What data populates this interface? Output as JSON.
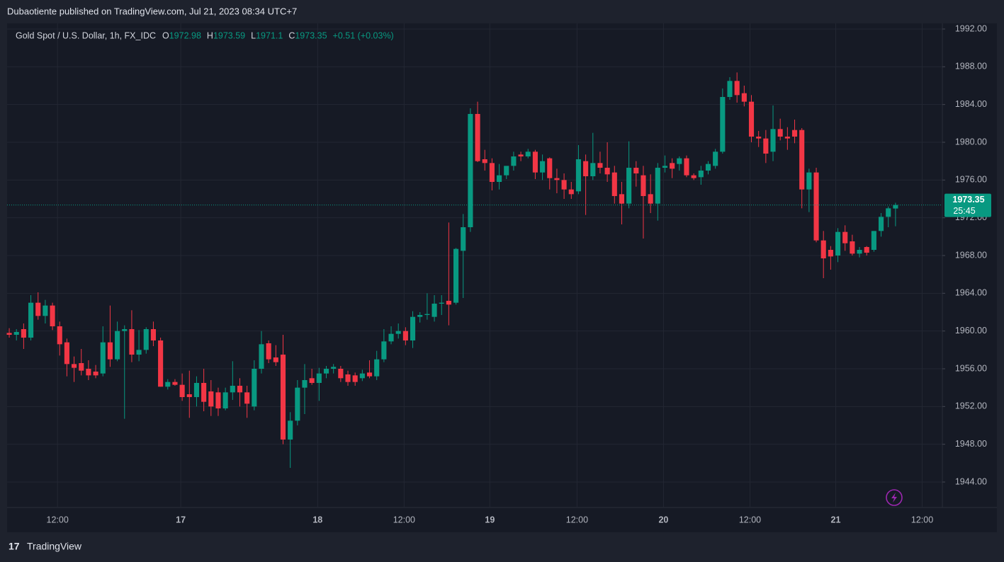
{
  "header": "Dubaotiente published on TradingView.com, Jul 21, 2023 08:34 UTC+7",
  "footer": "TradingView",
  "chart_data": {
    "type": "candlestick",
    "title": "Gold Spot / U.S. Dollar, 1h, FX_IDC",
    "legend_labels": [
      "O",
      "H",
      "L",
      "C"
    ],
    "change": "+0.51 (+0.03%)",
    "countdown": "25:45",
    "up_color": "#089981",
    "down_color": "#f23645",
    "grid": true,
    "ylim": [
      1941.3,
      1992.6
    ],
    "yticks": [
      {
        "value": 1944,
        "label": "1944.00"
      },
      {
        "value": 1948,
        "label": "1948.00"
      },
      {
        "value": 1952,
        "label": "1952.00"
      },
      {
        "value": 1956,
        "label": "1956.00"
      },
      {
        "value": 1960,
        "label": "1960.00"
      },
      {
        "value": 1964,
        "label": "1964.00"
      },
      {
        "value": 1968,
        "label": "1968.00"
      },
      {
        "value": 1972,
        "label": "1972.00"
      },
      {
        "value": 1976,
        "label": "1976.00"
      },
      {
        "value": 1980,
        "label": "1980.00"
      },
      {
        "value": 1984,
        "label": "1984.00"
      },
      {
        "value": 1988,
        "label": "1988.00"
      },
      {
        "value": 1992,
        "label": "1992.00"
      }
    ],
    "xlim": [
      -0.3,
      129.5
    ],
    "xticks": [
      {
        "value": 6.7,
        "label": "12:00"
      },
      {
        "value": 23.8,
        "label": "17"
      },
      {
        "value": 42.8,
        "label": "18"
      },
      {
        "value": 54.8,
        "label": "12:00"
      },
      {
        "value": 66.7,
        "label": "19"
      },
      {
        "value": 78.8,
        "label": "12:00"
      },
      {
        "value": 90.8,
        "label": "20"
      },
      {
        "value": 102.8,
        "label": "12:00"
      },
      {
        "value": 114.7,
        "label": "21"
      },
      {
        "value": 126.7,
        "label": "12:00"
      }
    ],
    "ohlc": [
      [
        1959.8,
        1960.3,
        1959.3,
        1959.6
      ],
      [
        1959.6,
        1960.2,
        1959.0,
        1959.9
      ],
      [
        1960.2,
        1960.8,
        1958.1,
        1959.3
      ],
      [
        1959.3,
        1963.8,
        1959.0,
        1963.0
      ],
      [
        1963.0,
        1964.1,
        1961.2,
        1961.6
      ],
      [
        1961.6,
        1963.3,
        1960.8,
        1962.7
      ],
      [
        1962.7,
        1963.0,
        1960.1,
        1960.5
      ],
      [
        1960.5,
        1961.0,
        1957.4,
        1958.6
      ],
      [
        1958.8,
        1959.2,
        1955.2,
        1956.5
      ],
      [
        1956.5,
        1957.3,
        1954.6,
        1956.1
      ],
      [
        1956.6,
        1958.1,
        1955.3,
        1955.8
      ],
      [
        1956.0,
        1956.9,
        1954.8,
        1955.3
      ],
      [
        1955.7,
        1956.4,
        1955.0,
        1955.3
      ],
      [
        1955.5,
        1960.5,
        1955.2,
        1958.8
      ],
      [
        1958.8,
        1962.7,
        1956.2,
        1957.0
      ],
      [
        1957.0,
        1961.0,
        1956.8,
        1960.0
      ],
      [
        1960.0,
        1960.6,
        1950.7,
        1960.2
      ],
      [
        1960.2,
        1962.2,
        1956.7,
        1957.5
      ],
      [
        1957.5,
        1960.1,
        1956.8,
        1958.0
      ],
      [
        1958.0,
        1960.4,
        1957.6,
        1960.2
      ],
      [
        1960.2,
        1961.0,
        1958.4,
        1959.0
      ],
      [
        1959.0,
        1959.3,
        1954.1,
        1954.1
      ],
      [
        1954.1,
        1954.9,
        1953.8,
        1954.6
      ],
      [
        1954.6,
        1954.9,
        1954.2,
        1954.3
      ],
      [
        1954.3,
        1955.5,
        1952.6,
        1953.0
      ],
      [
        1953.3,
        1955.8,
        1950.8,
        1953.0
      ],
      [
        1953.0,
        1955.2,
        1952.0,
        1954.5
      ],
      [
        1954.5,
        1956.0,
        1951.5,
        1952.5
      ],
      [
        1953.6,
        1954.8,
        1951.0,
        1952.0
      ],
      [
        1953.5,
        1954.0,
        1951.0,
        1951.8
      ],
      [
        1951.8,
        1954.0,
        1951.6,
        1953.5
      ],
      [
        1953.5,
        1956.8,
        1952.7,
        1954.2
      ],
      [
        1954.2,
        1955.0,
        1952.0,
        1953.5
      ],
      [
        1953.5,
        1954.2,
        1950.8,
        1952.3
      ],
      [
        1952.0,
        1956.9,
        1951.6,
        1956.0
      ],
      [
        1956.0,
        1960.0,
        1955.5,
        1958.6
      ],
      [
        1958.7,
        1959.0,
        1956.6,
        1957.0
      ],
      [
        1957.2,
        1958.5,
        1956.3,
        1956.7
      ],
      [
        1957.5,
        1959.6,
        1948.0,
        1948.5
      ],
      [
        1948.5,
        1951.4,
        1945.5,
        1950.5
      ],
      [
        1950.5,
        1954.8,
        1950.0,
        1954.0
      ],
      [
        1954.0,
        1956.5,
        1951.2,
        1954.8
      ],
      [
        1955.0,
        1956.0,
        1954.3,
        1954.5
      ],
      [
        1954.5,
        1956.1,
        1952.6,
        1955.5
      ],
      [
        1955.5,
        1956.3,
        1955.0,
        1956.0
      ],
      [
        1956.0,
        1956.5,
        1955.5,
        1956.2
      ],
      [
        1956.0,
        1956.3,
        1954.6,
        1955.0
      ],
      [
        1955.4,
        1955.8,
        1954.2,
        1954.6
      ],
      [
        1955.3,
        1955.6,
        1954.2,
        1954.6
      ],
      [
        1955.0,
        1955.9,
        1954.7,
        1955.5
      ],
      [
        1955.6,
        1956.9,
        1955.0,
        1955.2
      ],
      [
        1955.2,
        1957.9,
        1954.8,
        1957.0
      ],
      [
        1957.0,
        1960.2,
        1956.7,
        1958.9
      ],
      [
        1958.9,
        1960.5,
        1958.6,
        1959.7
      ],
      [
        1959.7,
        1960.8,
        1959.2,
        1960.0
      ],
      [
        1960.0,
        1960.4,
        1958.5,
        1959.0
      ],
      [
        1959.0,
        1962.1,
        1958.2,
        1961.5
      ],
      [
        1961.5,
        1962.0,
        1960.9,
        1961.7
      ],
      [
        1961.7,
        1964.0,
        1961.2,
        1961.8
      ],
      [
        1961.5,
        1963.8,
        1961.0,
        1962.9
      ],
      [
        1962.9,
        1963.8,
        1961.7,
        1963.0
      ],
      [
        1963.2,
        1971.5,
        1960.6,
        1962.8
      ],
      [
        1963.0,
        1968.8,
        1962.8,
        1968.7
      ],
      [
        1968.5,
        1972.4,
        1963.5,
        1971.0
      ],
      [
        1971.0,
        1983.6,
        1970.5,
        1983.0
      ],
      [
        1983.0,
        1984.3,
        1977.9,
        1978.0
      ],
      [
        1978.2,
        1979.2,
        1977.0,
        1977.8
      ],
      [
        1977.8,
        1978.3,
        1974.9,
        1975.8
      ],
      [
        1975.8,
        1977.7,
        1975.0,
        1976.5
      ],
      [
        1976.5,
        1977.3,
        1976.1,
        1977.5
      ],
      [
        1977.5,
        1979.0,
        1977.0,
        1978.5
      ],
      [
        1978.7,
        1979.0,
        1978.0,
        1978.5
      ],
      [
        1978.5,
        1979.3,
        1978.3,
        1979.0
      ],
      [
        1979.0,
        1979.2,
        1976.1,
        1976.8
      ],
      [
        1976.8,
        1978.7,
        1976.0,
        1978.0
      ],
      [
        1978.3,
        1978.4,
        1975.0,
        1976.2
      ],
      [
        1976.2,
        1977.2,
        1974.6,
        1976.0
      ],
      [
        1976.0,
        1976.7,
        1974.0,
        1975.0
      ],
      [
        1975.0,
        1975.8,
        1974.0,
        1974.5
      ],
      [
        1974.8,
        1979.7,
        1974.5,
        1978.2
      ],
      [
        1978.0,
        1978.7,
        1972.3,
        1976.4
      ],
      [
        1976.4,
        1981.0,
        1976.0,
        1977.8
      ],
      [
        1977.8,
        1979.0,
        1976.7,
        1977.3
      ],
      [
        1977.3,
        1980.0,
        1975.8,
        1976.6
      ],
      [
        1976.8,
        1977.5,
        1973.5,
        1974.3
      ],
      [
        1974.5,
        1975.8,
        1971.3,
        1973.5
      ],
      [
        1973.5,
        1980.1,
        1973.0,
        1977.3
      ],
      [
        1977.3,
        1978.0,
        1975.3,
        1976.7
      ],
      [
        1976.5,
        1977.5,
        1969.8,
        1974.3
      ],
      [
        1974.5,
        1976.6,
        1972.5,
        1973.5
      ],
      [
        1973.5,
        1977.8,
        1971.7,
        1977.3
      ],
      [
        1977.3,
        1978.6,
        1976.8,
        1977.5
      ],
      [
        1977.8,
        1978.3,
        1976.2,
        1977.2
      ],
      [
        1977.7,
        1978.5,
        1977.0,
        1978.3
      ],
      [
        1978.3,
        1978.6,
        1976.3,
        1976.5
      ],
      [
        1976.5,
        1976.7,
        1976.0,
        1976.2
      ],
      [
        1976.3,
        1977.5,
        1975.5,
        1977.0
      ],
      [
        1977.0,
        1978.0,
        1976.6,
        1977.7
      ],
      [
        1977.5,
        1979.3,
        1977.2,
        1979.0
      ],
      [
        1979.0,
        1985.7,
        1978.8,
        1984.8
      ],
      [
        1984.8,
        1986.9,
        1984.5,
        1986.5
      ],
      [
        1986.5,
        1987.4,
        1984.2,
        1985.0
      ],
      [
        1985.2,
        1986.0,
        1983.8,
        1984.3
      ],
      [
        1984.3,
        1985.0,
        1980.0,
        1980.6
      ],
      [
        1980.6,
        1981.2,
        1979.5,
        1980.4
      ],
      [
        1980.4,
        1981.3,
        1977.8,
        1978.8
      ],
      [
        1979.0,
        1983.9,
        1978.0,
        1981.4
      ],
      [
        1981.4,
        1982.5,
        1980.2,
        1980.6
      ],
      [
        1980.6,
        1981.6,
        1979.2,
        1980.4
      ],
      [
        1981.3,
        1982.4,
        1979.9,
        1980.6
      ],
      [
        1981.3,
        1981.5,
        1973.0,
        1975.0
      ],
      [
        1975.0,
        1977.2,
        1972.6,
        1976.8
      ],
      [
        1976.8,
        1977.3,
        1969.4,
        1969.6
      ],
      [
        1969.6,
        1970.6,
        1965.6,
        1967.7
      ],
      [
        1968.6,
        1969.0,
        1966.5,
        1967.9
      ],
      [
        1968.0,
        1970.9,
        1967.3,
        1970.5
      ],
      [
        1970.5,
        1971.2,
        1968.5,
        1969.3
      ],
      [
        1969.5,
        1970.2,
        1968.0,
        1968.2
      ],
      [
        1968.2,
        1968.9,
        1967.8,
        1968.6
      ],
      [
        1968.9,
        1969.0,
        1968.0,
        1968.3
      ],
      [
        1968.6,
        1970.6,
        1968.4,
        1970.6
      ],
      [
        1970.6,
        1972.5,
        1970.0,
        1972.1
      ],
      [
        1972.1,
        1973.2,
        1971.0,
        1973.0
      ],
      [
        1972.98,
        1973.59,
        1971.1,
        1973.35
      ]
    ]
  }
}
